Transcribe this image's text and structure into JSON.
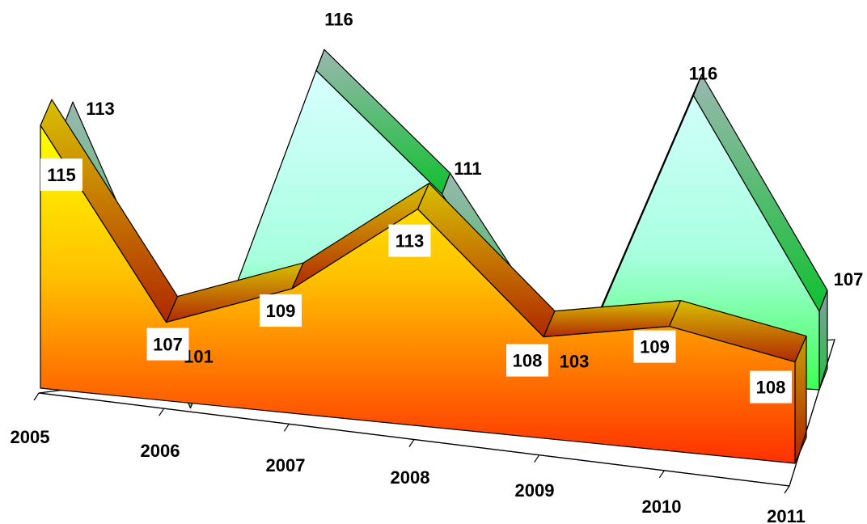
{
  "chart_data": {
    "type": "area",
    "style": "3d",
    "categories": [
      "2005",
      "2006",
      "2007",
      "2008",
      "2009",
      "2010",
      "2011"
    ],
    "series": [
      {
        "values": [
          115,
          107,
          109,
          113,
          108,
          109,
          108
        ],
        "color": "#ffd800"
      },
      {
        "values": [
          113,
          101,
          116,
          111,
          103,
          116,
          107
        ],
        "color": "#7fffd4"
      }
    ],
    "xlabel": "",
    "ylabel": "",
    "title": "",
    "grid": false,
    "legend": "none"
  }
}
